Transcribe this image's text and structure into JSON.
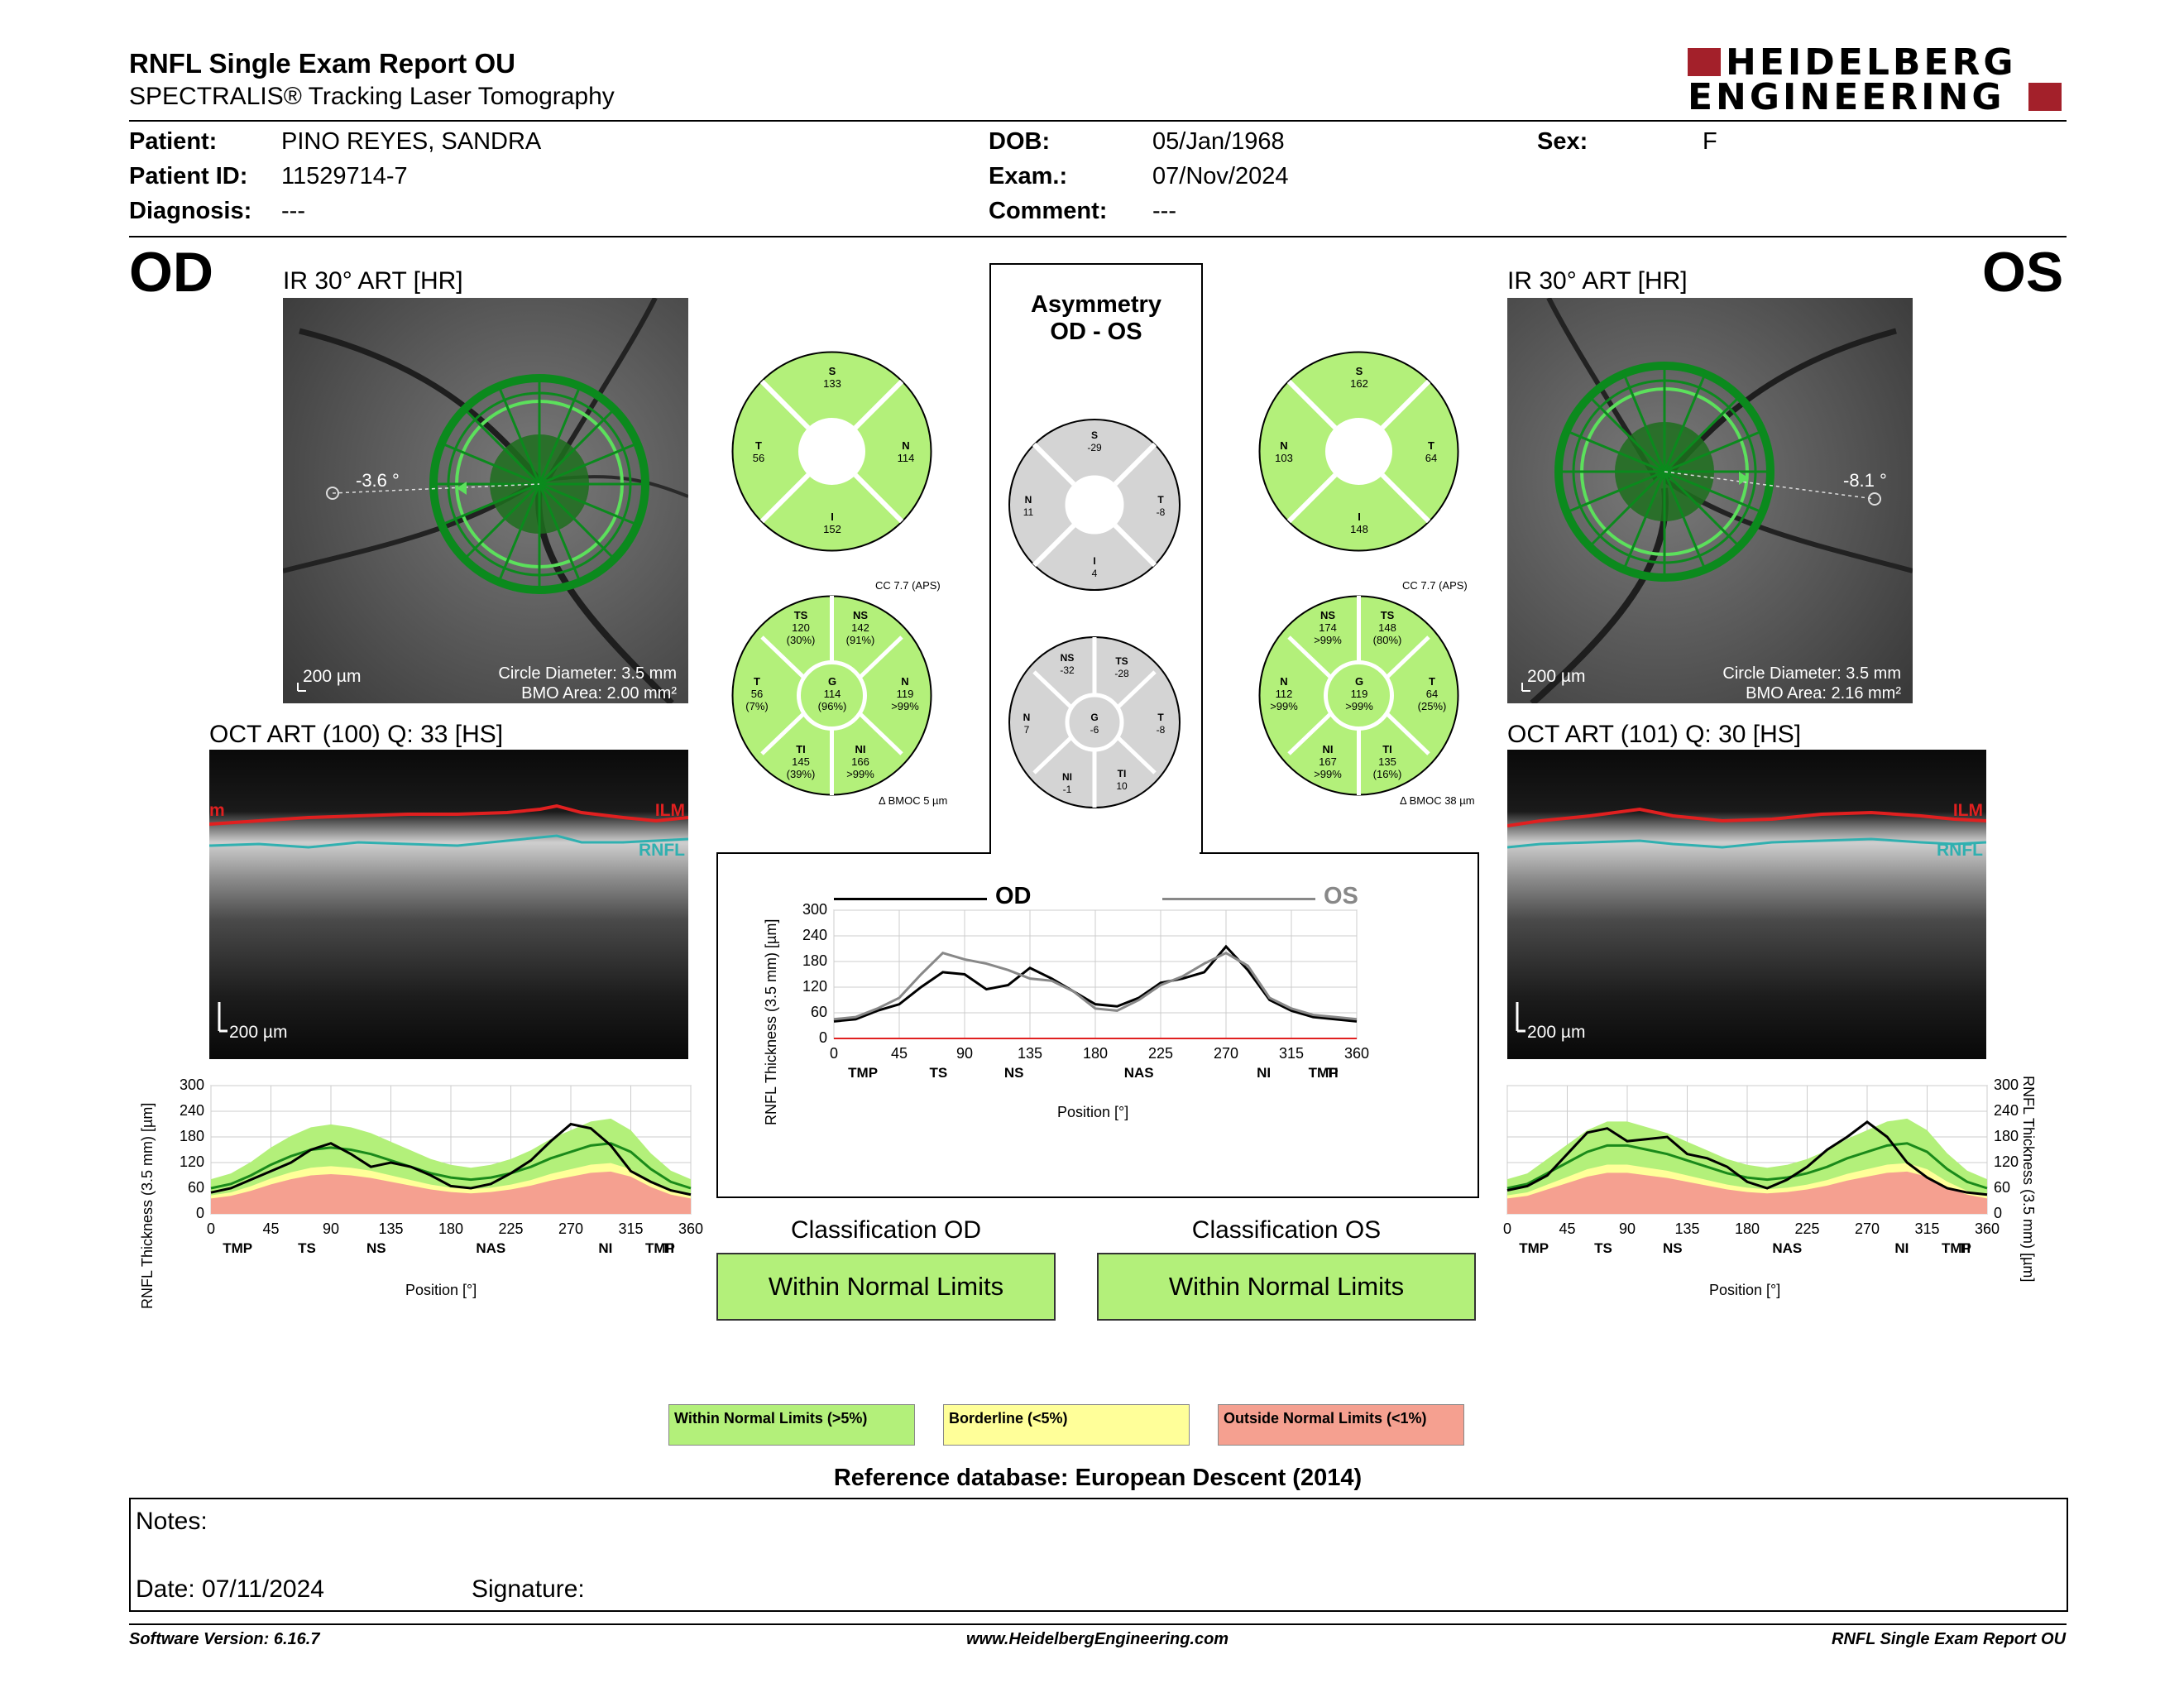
{
  "header": {
    "title": "RNFL Single Exam Report OU",
    "subtitle": "SPECTRALIS® Tracking Laser Tomography",
    "logo_line1": "HEIDELBERG",
    "logo_line2": "ENGINEERING"
  },
  "patient": {
    "patient_label": "Patient:",
    "patient_value": "PINO REYES, SANDRA",
    "id_label": "Patient ID:",
    "id_value": "11529714-7",
    "diagnosis_label": "Diagnosis:",
    "diagnosis_value": "---",
    "dob_label": "DOB:",
    "dob_value": "05/Jan/1968",
    "exam_label": "Exam.:",
    "exam_value": "07/Nov/2024",
    "comment_label": "Comment:",
    "comment_value": "---",
    "sex_label": "Sex:",
    "sex_value": "F"
  },
  "od": {
    "eye": "OD",
    "ir_title": "IR 30° ART [HR]",
    "angle": "-3.6 °",
    "scale": "200 µm",
    "circle_diameter": "Circle Diameter: 3.5 mm",
    "bmo_area": "BMO Area: 2.00 mm²",
    "oct_title": "OCT ART (100) Q: 33 [HS]",
    "oct_scale": "200 µm",
    "ilm": "ILM",
    "rnfl": "RNFL",
    "ilm_cut": "m",
    "sectors": {
      "S": "133",
      "N": "114",
      "I": "152",
      "T": "56"
    },
    "sector_labels": {
      "S": "S",
      "N": "N",
      "I": "I",
      "T": "T"
    },
    "sectors6": {
      "TS": [
        "TS",
        "120",
        "(30%)"
      ],
      "NS": [
        "NS",
        "142",
        "(91%)"
      ],
      "T": [
        "T",
        "56",
        "(7%)"
      ],
      "G": [
        "G",
        "114",
        "(96%)"
      ],
      "N": [
        "N",
        "119",
        ">99%"
      ],
      "TI": [
        "TI",
        "145",
        "(39%)"
      ],
      "NI": [
        "NI",
        "166",
        ">99%"
      ]
    },
    "cc": "CC 7.7 (APS)",
    "bmoc": "Δ BMOC 5 µm",
    "classification_title": "Classification OD",
    "classification": "Within Normal Limits"
  },
  "os": {
    "eye": "OS",
    "ir_title": "IR 30° ART [HR]",
    "angle": "-8.1 °",
    "scale": "200 µm",
    "circle_diameter": "Circle Diameter: 3.5 mm",
    "bmo_area": "BMO Area: 2.16 mm²",
    "oct_title": "OCT ART (101) Q: 30 [HS]",
    "oct_scale": "200 µm",
    "ilm": "ILM",
    "rnfl": "RNFL",
    "sectors": {
      "S": "162",
      "N": "103",
      "I": "148",
      "T": "64"
    },
    "sector_labels": {
      "S": "S",
      "N": "N",
      "I": "I",
      "T": "T"
    },
    "sectors6": {
      "NS": [
        "NS",
        "174",
        ">99%"
      ],
      "TS": [
        "TS",
        "148",
        "(80%)"
      ],
      "N": [
        "N",
        "112",
        ">99%"
      ],
      "G": [
        "G",
        "119",
        ">99%"
      ],
      "T": [
        "T",
        "64",
        "(25%)"
      ],
      "NI": [
        "NI",
        "167",
        ">99%"
      ],
      "TI": [
        "TI",
        "135",
        "(16%)"
      ]
    },
    "cc": "CC 7.7 (APS)",
    "bmoc": "Δ BMOC 38 µm",
    "classification_title": "Classification OS",
    "classification": "Within Normal Limits"
  },
  "asymmetry": {
    "title1": "Asymmetry",
    "title2": "OD - OS",
    "sectors": {
      "S": "-29",
      "N": "11",
      "T": "-8",
      "I": "4"
    },
    "sector_labels": {
      "S": "S",
      "N": "N",
      "T": "T",
      "I": "I"
    },
    "sectors6": {
      "NS": [
        "NS",
        "-32"
      ],
      "TS": [
        "TS",
        "-28"
      ],
      "N": [
        "N",
        "7"
      ],
      "G": [
        "G",
        "-6"
      ],
      "T": [
        "T",
        "-8"
      ],
      "NI": [
        "NI",
        "-1"
      ],
      "TI": [
        "TI",
        "10"
      ]
    }
  },
  "legend": {
    "normal": "Within Normal Limits (>5%)",
    "borderline": "Borderline (<5%)",
    "outside": "Outside Normal Limits (<1%)",
    "reference": "Reference database: European Descent (2014)"
  },
  "notes": {
    "notes_label": "Notes:",
    "date_label": "Date: 07/11/2024",
    "signature_label": "Signature:"
  },
  "footer": {
    "version": "Software Version: 6.16.7",
    "url": "www.HeidelbergEngineering.com",
    "report": "RNFL Single Exam Report OU"
  },
  "colors": {
    "normal": "#b3f07a",
    "borderline": "#ffff99",
    "outside": "#f5a090",
    "logo_red": "#a3202a",
    "od_line": "#000000",
    "os_line": "#888888",
    "ilm": "#e02020",
    "rnfl": "#30b0b0"
  },
  "chart_data": [
    {
      "type": "line",
      "name": "od-profile",
      "xlabel": "Position [°]",
      "ylabel": "RNFL Thickness (3.5 mm) [µm]",
      "ylim": [
        0,
        300
      ],
      "xlim": [
        0,
        360
      ],
      "xticks": [
        "0",
        "45",
        "90",
        "135",
        "180",
        "225",
        "270",
        "315",
        "360"
      ],
      "yticks": [
        "0",
        "60",
        "120",
        "180",
        "240",
        "300"
      ],
      "segments": [
        "TMP",
        "TS",
        "NS",
        "NAS",
        "NI",
        "TI",
        "TMP"
      ],
      "x": [
        0,
        15,
        30,
        45,
        60,
        75,
        90,
        105,
        120,
        135,
        150,
        165,
        180,
        195,
        210,
        225,
        240,
        255,
        270,
        285,
        300,
        315,
        330,
        345,
        360
      ],
      "series": [
        {
          "values": [
            50,
            60,
            80,
            100,
            120,
            150,
            165,
            140,
            110,
            120,
            110,
            90,
            65,
            60,
            70,
            95,
            125,
            170,
            210,
            200,
            160,
            100,
            75,
            55,
            45
          ]
        },
        {
          "values": [
            60,
            70,
            90,
            115,
            135,
            150,
            155,
            150,
            140,
            125,
            110,
            95,
            85,
            80,
            85,
            95,
            110,
            130,
            145,
            160,
            165,
            145,
            105,
            75,
            60
          ]
        }
      ]
    },
    {
      "type": "line",
      "name": "ou-comparison",
      "xlabel": "Position [°]",
      "ylabel": "RNFL Thickness (3.5 mm) [µm]",
      "ylim": [
        0,
        300
      ],
      "xlim": [
        0,
        360
      ],
      "xticks": [
        "0",
        "45",
        "90",
        "135",
        "180",
        "225",
        "270",
        "315",
        "360"
      ],
      "yticks": [
        "0",
        "60",
        "120",
        "180",
        "240",
        "300"
      ],
      "segments": [
        "TMP",
        "TS",
        "NS",
        "NAS",
        "NI",
        "TI",
        "TMP"
      ],
      "x": [
        0,
        15,
        30,
        45,
        60,
        75,
        90,
        105,
        120,
        135,
        150,
        165,
        180,
        195,
        210,
        225,
        240,
        255,
        270,
        285,
        300,
        315,
        330,
        345,
        360
      ],
      "series": [
        {
          "name": "OD",
          "values": [
            40,
            45,
            65,
            80,
            120,
            155,
            150,
            115,
            125,
            165,
            140,
            110,
            80,
            75,
            95,
            130,
            140,
            155,
            215,
            160,
            90,
            65,
            50,
            45,
            40
          ]
        },
        {
          "name": "OS",
          "values": [
            45,
            50,
            70,
            95,
            150,
            200,
            185,
            175,
            160,
            140,
            135,
            110,
            70,
            65,
            90,
            125,
            145,
            175,
            200,
            170,
            95,
            70,
            55,
            50,
            45
          ]
        }
      ]
    },
    {
      "type": "line",
      "name": "os-profile",
      "xlabel": "Position [°]",
      "ylabel": "RNFL Thickness (3.5 mm) [µm]",
      "ylim": [
        0,
        300
      ],
      "xlim": [
        0,
        360
      ],
      "xticks": [
        "0",
        "45",
        "90",
        "135",
        "180",
        "225",
        "270",
        "315",
        "360"
      ],
      "yticks": [
        "0",
        "60",
        "120",
        "180",
        "240",
        "300"
      ],
      "segments": [
        "TMP",
        "TS",
        "NS",
        "NAS",
        "NI",
        "TI",
        "TMP"
      ],
      "x": [
        0,
        15,
        30,
        45,
        60,
        75,
        90,
        105,
        120,
        135,
        150,
        165,
        180,
        195,
        210,
        225,
        240,
        255,
        270,
        285,
        300,
        315,
        330,
        345,
        360
      ],
      "series": [
        {
          "values": [
            55,
            65,
            90,
            140,
            190,
            200,
            170,
            175,
            180,
            140,
            130,
            110,
            75,
            60,
            80,
            110,
            150,
            180,
            215,
            180,
            120,
            85,
            60,
            50,
            45
          ]
        },
        {
          "values": [
            60,
            70,
            95,
            120,
            145,
            160,
            160,
            150,
            140,
            125,
            110,
            95,
            85,
            80,
            85,
            95,
            110,
            130,
            145,
            160,
            165,
            145,
            105,
            75,
            60
          ]
        }
      ]
    }
  ]
}
